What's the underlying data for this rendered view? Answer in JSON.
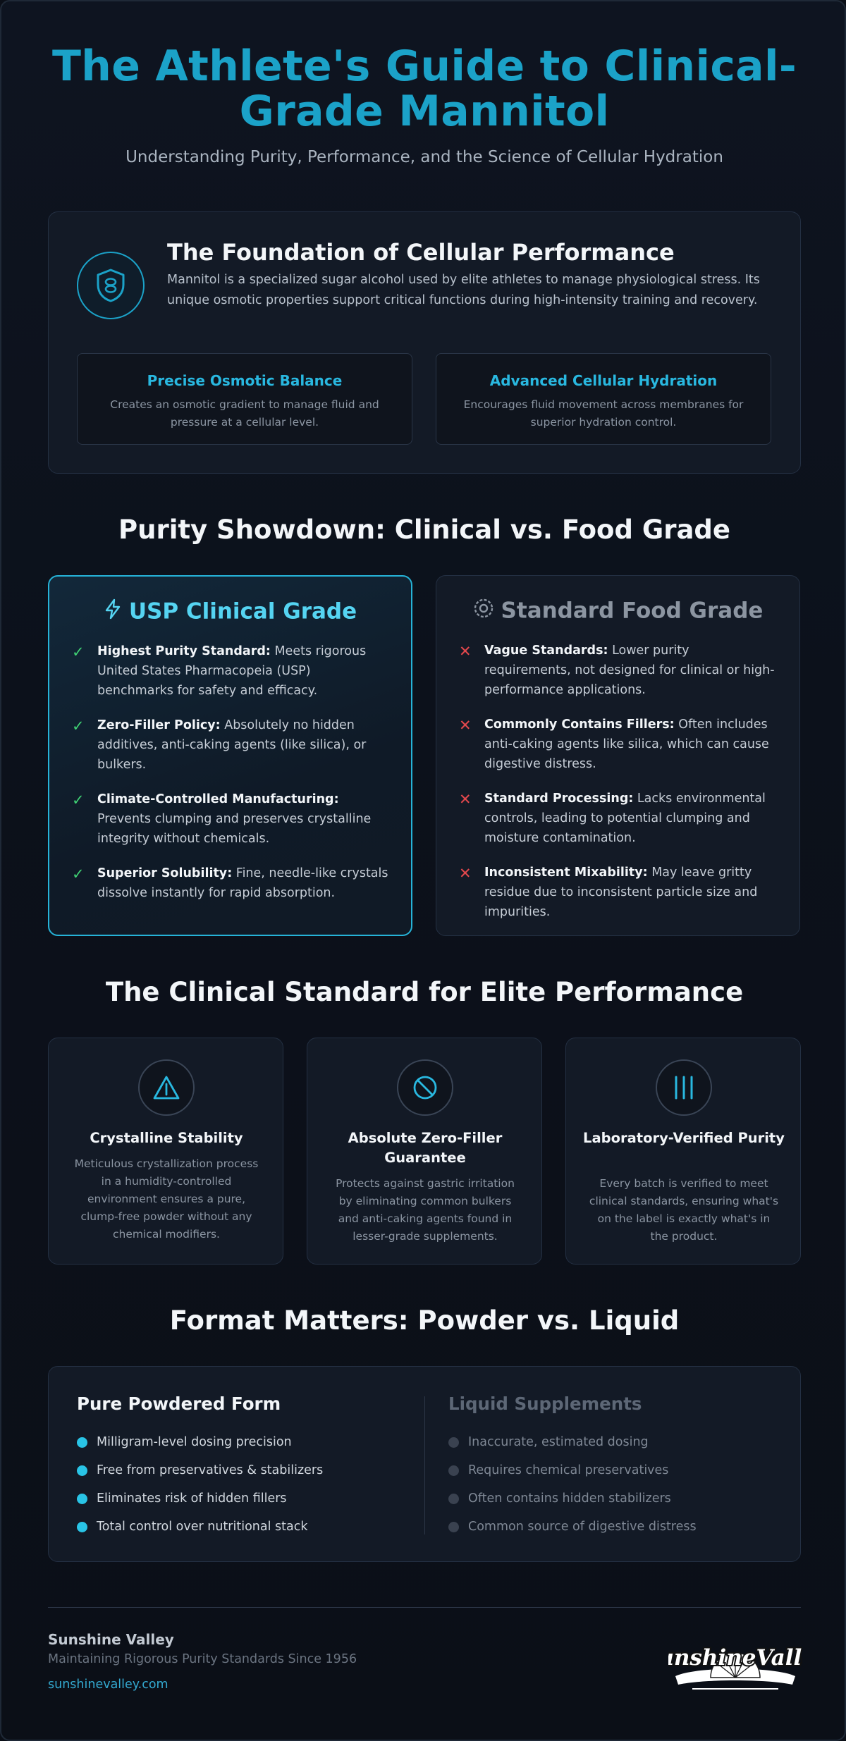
{
  "hero": {
    "title": "The Athlete's Guide to Clinical-Grade Mannitol",
    "subtitle": "Understanding Purity, Performance, and the Science of Cellular Hydration"
  },
  "foundation": {
    "icon": "shield-icon",
    "title": "The Foundation of Cellular Performance",
    "description": "Mannitol is a specialized sugar alcohol used by elite athletes to manage physiological stress. Its unique osmotic properties support critical functions during high-intensity training and recovery.",
    "features": [
      {
        "title": "Precise Osmotic Balance",
        "text": "Creates an osmotic gradient to manage fluid and pressure at a cellular level."
      },
      {
        "title": "Advanced Cellular Hydration",
        "text": "Encourages fluid movement across membranes for superior hydration control."
      }
    ]
  },
  "showdown": {
    "title": "Purity Showdown: Clinical vs. Food Grade",
    "clinical": {
      "icon": "lightning-icon",
      "title": "USP Clinical Grade",
      "items": [
        {
          "label": "Highest Purity Standard:",
          "text": " Meets rigorous United States Pharmacopeia (USP) benchmarks for safety and efficacy."
        },
        {
          "label": "Zero-Filler Policy:",
          "text": " Absolutely no hidden additives, anti-caking agents (like silica), or bulkers."
        },
        {
          "label": "Climate-Controlled Manufacturing:",
          "text": " Prevents clumping and preserves crystalline integrity without chemicals."
        },
        {
          "label": "Superior Solubility:",
          "text": " Fine, needle-like crystals dissolve instantly for rapid absorption."
        }
      ]
    },
    "food": {
      "icon": "gear-icon",
      "title": "Standard Food Grade",
      "items": [
        {
          "label": "Vague Standards:",
          "text": " Lower purity requirements, not designed for clinical or high-performance applications."
        },
        {
          "label": "Commonly Contains Fillers:",
          "text": " Often includes anti-caking agents like silica, which can cause digestive distress."
        },
        {
          "label": "Standard Processing:",
          "text": " Lacks environmental controls, leading to potential clumping and moisture contamination."
        },
        {
          "label": "Inconsistent Mixability:",
          "text": " May leave gritty residue due to inconsistent particle size and impurities."
        }
      ]
    }
  },
  "standard": {
    "title": "The Clinical Standard for Elite Performance",
    "cards": [
      {
        "icon": "warning-triangle-icon",
        "title": "Crystalline Stability",
        "text": "Meticulous crystallization process in a humidity-controlled environment ensures a pure, clump-free powder without any chemical modifiers."
      },
      {
        "icon": "prohibited-icon",
        "title": "Absolute Zero-Filler Guarantee",
        "text": "Protects against gastric irritation by eliminating common bulkers and anti-caking agents found in lesser-grade supplements."
      },
      {
        "icon": "test-tubes-icon",
        "title": "Laboratory-Verified Purity",
        "text": "Every batch is verified to meet clinical standards, ensuring what's on the label is exactly what's in the product."
      }
    ]
  },
  "format": {
    "title": "Format Matters: Powder vs. Liquid",
    "powder": {
      "title": "Pure Powdered Form",
      "items": [
        "Milligram-level dosing precision",
        "Free from preservatives & stabilizers",
        "Eliminates risk of hidden fillers",
        "Total control over nutritional stack"
      ]
    },
    "liquid": {
      "title": "Liquid Supplements",
      "items": [
        "Inaccurate, estimated dosing",
        "Requires chemical preservatives",
        "Often contains hidden stabilizers",
        "Common source of digestive distress"
      ]
    }
  },
  "footer": {
    "brand": "Sunshine Valley",
    "tagline": "Maintaining Rigorous Purity Standards Since 1956",
    "url": "sunshinevalley.com",
    "logo_text": "SunshineValley"
  },
  "colors": {
    "accent": "#1ba2c8",
    "accent_light": "#29c4e6",
    "check": "#3fcf73",
    "cross": "#e5484d",
    "background": "#0b0f17"
  }
}
